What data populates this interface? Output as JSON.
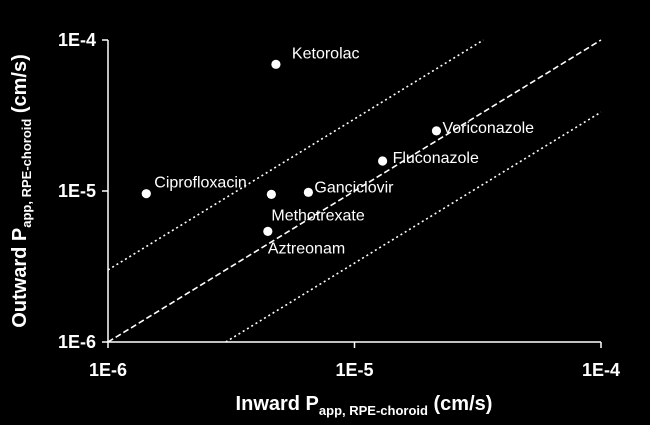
{
  "chart_data": {
    "type": "scatter",
    "x_scale": "log",
    "y_scale": "log",
    "xlim": [
      1e-06,
      0.0001
    ],
    "ylim": [
      1e-06,
      0.0001
    ],
    "x_ticks": [
      {
        "value": 1e-06,
        "label": "1E-6"
      },
      {
        "value": 1e-05,
        "label": "1E-5"
      },
      {
        "value": 0.0001,
        "label": "1E-4"
      }
    ],
    "y_ticks": [
      {
        "value": 1e-06,
        "label": "1E-6"
      },
      {
        "value": 1e-05,
        "label": "1E-5"
      },
      {
        "value": 0.0001,
        "label": "1E-4"
      }
    ],
    "xlabel": {
      "main": "Inward P",
      "sub": "app, RPE-choroid",
      "unit": " (cm/s)"
    },
    "ylabel": {
      "main": "Outward P",
      "sub": "app, RPE-choroid",
      "unit": " (cm/s)"
    },
    "grid": false,
    "points": [
      {
        "label": "Ketorolac",
        "x": 4.8e-06,
        "y": 6.9e-05
      },
      {
        "label": "Voriconazole",
        "x": 2.15e-05,
        "y": 2.5e-05
      },
      {
        "label": "Fluconazole",
        "x": 1.3e-05,
        "y": 1.58e-05
      },
      {
        "label": "Ciprofloxacin",
        "x": 1.43e-06,
        "y": 9.6e-06
      },
      {
        "label": "Ganciclovir",
        "x": 6.5e-06,
        "y": 9.8e-06
      },
      {
        "label": "Methotrexate",
        "x": 4.6e-06,
        "y": 9.5e-06
      },
      {
        "label": "Aztreonam",
        "x": 4.45e-06,
        "y": 5.4e-06
      }
    ],
    "reference_lines": [
      {
        "style": "dashed",
        "ratio": 1
      },
      {
        "style": "dotted",
        "ratio": 3
      },
      {
        "style": "dotted",
        "ratio": 0.333
      }
    ]
  },
  "colors": {
    "background": "#000000",
    "foreground": "#ffffff"
  }
}
